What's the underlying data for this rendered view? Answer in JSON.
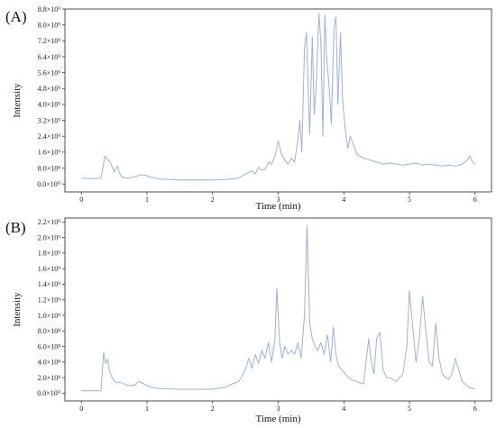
{
  "colors": {
    "trace": "#9bb3d4",
    "axis": "#222222"
  },
  "chart_data": [
    {
      "type": "line",
      "panel_label": "(A)",
      "xlabel": "Time (min)",
      "ylabel": "Intensity",
      "xlim": [
        -0.25,
        6.25
      ],
      "ylim": [
        -0.4,
        8.8
      ],
      "x_ticks": [
        0,
        1,
        2,
        3,
        4,
        5,
        6
      ],
      "x_tick_labels": [
        "0",
        "1",
        "2",
        "3",
        "4",
        "5",
        "6"
      ],
      "y_ticks": [
        0,
        0.8,
        1.6,
        2.4,
        3.2,
        4.0,
        4.8,
        5.6,
        6.4,
        7.2,
        8.0,
        8.8
      ],
      "y_tick_labels": [
        "0.0×10⁰",
        "8.0×10⁸",
        "1.6×10⁹",
        "2.4×10⁹",
        "3.2×10⁹",
        "4.0×10⁹",
        "4.8×10⁹",
        "5.6×10⁹",
        "6.4×10⁹",
        "7.2×10⁹",
        "8.0×10⁹",
        "8.8×10⁹"
      ],
      "y_unit_note": "values in units of 10^9",
      "series": [
        {
          "x": [
            0,
            0.1,
            0.2,
            0.3,
            0.36,
            0.4,
            0.44,
            0.5,
            0.55,
            0.58,
            0.62,
            0.7,
            0.8,
            0.9,
            0.96,
            1.05,
            1.2,
            1.5,
            1.8,
            2.0,
            2.2,
            2.4,
            2.5,
            2.6,
            2.65,
            2.7,
            2.75,
            2.8,
            2.86,
            2.9,
            2.95,
            3.0,
            3.05,
            3.1,
            3.15,
            3.2,
            3.25,
            3.3,
            3.33,
            3.36,
            3.4,
            3.43,
            3.45,
            3.48,
            3.52,
            3.55,
            3.58,
            3.62,
            3.65,
            3.68,
            3.71,
            3.74,
            3.78,
            3.81,
            3.85,
            3.88,
            3.91,
            3.95,
            3.98,
            4.02,
            4.06,
            4.1,
            4.2,
            4.3,
            4.4,
            4.5,
            4.6,
            4.7,
            4.8,
            4.9,
            5.0,
            5.1,
            5.2,
            5.3,
            5.4,
            5.5,
            5.6,
            5.7,
            5.8,
            5.88,
            5.92,
            5.96,
            6.0
          ],
          "y": [
            0.3,
            0.28,
            0.27,
            0.3,
            1.4,
            1.25,
            1.1,
            0.6,
            0.9,
            0.55,
            0.35,
            0.3,
            0.35,
            0.45,
            0.45,
            0.35,
            0.25,
            0.2,
            0.2,
            0.2,
            0.22,
            0.3,
            0.5,
            0.65,
            0.5,
            0.85,
            0.7,
            0.75,
            1.1,
            1.0,
            1.4,
            2.15,
            1.5,
            1.2,
            1.0,
            1.3,
            1.1,
            2.2,
            3.2,
            1.6,
            6.8,
            7.6,
            5.5,
            2.5,
            7.4,
            3.5,
            5.0,
            8.6,
            7.2,
            2.4,
            8.5,
            6.3,
            4.7,
            3.0,
            7.9,
            8.4,
            4.0,
            7.6,
            4.3,
            2.8,
            1.8,
            2.4,
            1.5,
            1.3,
            1.2,
            1.1,
            1.0,
            1.05,
            1.0,
            0.95,
            1.0,
            1.05,
            0.95,
            1.0,
            0.95,
            0.9,
            0.95,
            0.9,
            1.0,
            1.2,
            1.4,
            1.1,
            1.0
          ]
        }
      ]
    },
    {
      "type": "line",
      "panel_label": "(B)",
      "xlabel": "Time (min)",
      "ylabel": "Intensity",
      "xlim": [
        -0.25,
        6.25
      ],
      "ylim": [
        -0.1,
        2.25
      ],
      "x_ticks": [
        0,
        1,
        2,
        3,
        4,
        5,
        6
      ],
      "x_tick_labels": [
        "0",
        "1",
        "2",
        "3",
        "4",
        "5",
        "6"
      ],
      "y_ticks": [
        0,
        0.2,
        0.4,
        0.6,
        0.8,
        1.0,
        1.2,
        1.4,
        1.6,
        1.8,
        2.0,
        2.2
      ],
      "y_tick_labels": [
        "0.0×10⁰",
        "2.0×10⁸",
        "4.0×10⁸",
        "6.0×10⁸",
        "8.0×10⁸",
        "1.0×10⁹",
        "1.2×10⁹",
        "1.4×10⁹",
        "1.6×10⁹",
        "1.8×10⁹",
        "2.0×10⁹",
        "2.2×10⁹"
      ],
      "y_unit_note": "values in units of 10^9",
      "series": [
        {
          "x": [
            0,
            0.1,
            0.2,
            0.3,
            0.34,
            0.37,
            0.4,
            0.43,
            0.47,
            0.52,
            0.6,
            0.7,
            0.8,
            0.88,
            0.95,
            1.05,
            1.2,
            1.5,
            1.8,
            2.0,
            2.2,
            2.3,
            2.4,
            2.45,
            2.5,
            2.55,
            2.6,
            2.65,
            2.7,
            2.75,
            2.8,
            2.85,
            2.9,
            2.95,
            2.98,
            3.02,
            3.06,
            3.1,
            3.15,
            3.2,
            3.25,
            3.3,
            3.35,
            3.4,
            3.44,
            3.48,
            3.52,
            3.56,
            3.6,
            3.65,
            3.7,
            3.75,
            3.8,
            3.84,
            3.88,
            3.92,
            3.97,
            4.02,
            4.1,
            4.2,
            4.3,
            4.38,
            4.42,
            4.46,
            4.5,
            4.55,
            4.6,
            4.65,
            4.7,
            4.8,
            4.9,
            4.96,
            5.0,
            5.04,
            5.1,
            5.15,
            5.2,
            5.25,
            5.3,
            5.35,
            5.4,
            5.45,
            5.5,
            5.55,
            5.6,
            5.65,
            5.7,
            5.8,
            5.9,
            6.0
          ],
          "y": [
            0.03,
            0.03,
            0.03,
            0.03,
            0.52,
            0.38,
            0.44,
            0.28,
            0.2,
            0.14,
            0.14,
            0.1,
            0.1,
            0.15,
            0.12,
            0.08,
            0.06,
            0.05,
            0.05,
            0.05,
            0.08,
            0.12,
            0.15,
            0.22,
            0.3,
            0.45,
            0.32,
            0.5,
            0.38,
            0.55,
            0.45,
            0.65,
            0.4,
            0.7,
            1.35,
            0.65,
            0.45,
            0.6,
            0.5,
            0.55,
            0.5,
            0.65,
            0.45,
            1.0,
            2.15,
            0.9,
            0.7,
            0.6,
            0.55,
            0.65,
            0.5,
            0.75,
            0.4,
            0.85,
            0.5,
            0.35,
            0.3,
            0.25,
            0.18,
            0.15,
            0.12,
            0.7,
            0.4,
            0.25,
            0.7,
            0.78,
            0.3,
            0.2,
            0.2,
            0.15,
            0.25,
            0.6,
            1.32,
            0.95,
            0.4,
            0.7,
            1.25,
            0.8,
            0.4,
            0.35,
            0.9,
            0.45,
            0.25,
            0.2,
            0.18,
            0.25,
            0.45,
            0.15,
            0.08,
            0.05
          ]
        }
      ]
    }
  ]
}
